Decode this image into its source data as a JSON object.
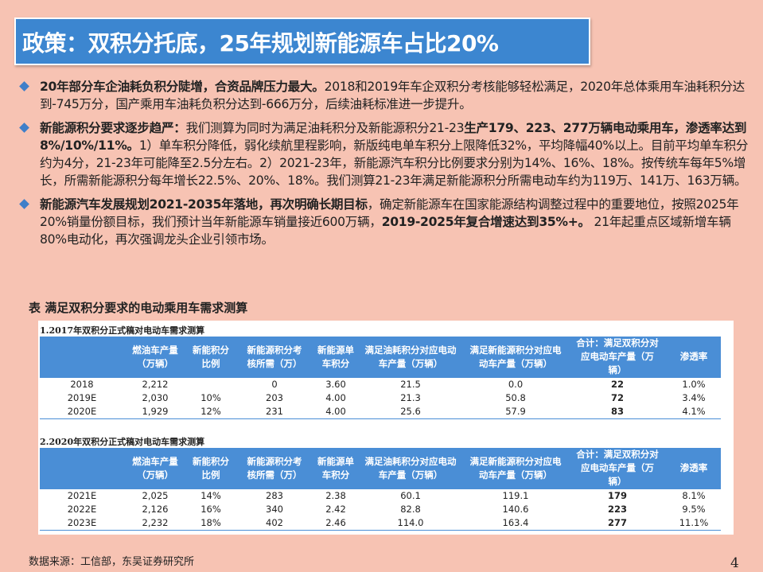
{
  "title": "政策：双积分托底，25年规划新能源车占比20%",
  "bullets": [
    {
      "lead": "20年部分车企油耗负积分陡增，合资品牌压力最大。",
      "text": "2018和2019年车企双积分考核能够轻松满足，2020年总体乘用车油耗积分达到-745万分，国产乘用车油耗负积分达到-666万分，后续油耗标准进一步提升。"
    },
    {
      "lead": "新能源积分要求逐步趋严：",
      "text1": "我们测算为同时为满足油耗积分及新能源积分21-23",
      "bold1": "生产179、223、277万辆电动乘用车，渗透率达到8%/10%/11%。",
      "text2": "1）单车积分降低，弱化续航里程影响，新版纯电单车积分上限降低32%，平均降幅40%以上。目前平均单车积分约为4分，21-23年可能降至2.5分左右。2）2021-23年，新能源汽车积分比例要求分别为14%、16%、18%。按传统车每年5%增长，所需新能源积分每年增长22.5%、20%、18%。我们测算21-23年满足新能源积分所需电动车约为119万、141万、163万辆。"
    },
    {
      "lead": "新能源汽车发展规划2021-2035年落地，再次明确长期目标",
      "text1": "，确定新能源车在国家能源结构调整过程中的重要地位，按照2025年20%销量份额目标，我们预计当年新能源车销量接近600万辆，",
      "bold1": "2019-2025年复合增速达到35%+。",
      "text2": " 21年起重点区域新增车辆80%电动化，再次强调龙头企业引领市场。"
    }
  ],
  "table_caption": "表  满足双积分要求的电动乘用车需求测算",
  "headers": [
    "",
    "燃油车产量（万辆）",
    "新能积分比例",
    "新能源积分考核所需（万）",
    "新能源单车积分",
    "满足油耗积分对应电动车产量（万辆）",
    "满足新能源积分对应电动车产量（万辆）",
    "合计：满足双积分对应电动车产量（万辆）",
    "渗透率"
  ],
  "header_lines": [
    [
      ""
    ],
    [
      "燃油车产量",
      "（万辆）"
    ],
    [
      "新能积分",
      "比例"
    ],
    [
      "新能源积分考",
      "核所需（万）"
    ],
    [
      "新能源单",
      "车积分"
    ],
    [
      "满足油耗积分对应电动",
      "车产量（万辆）"
    ],
    [
      "满足新能源积分对应电",
      "动车产量（万辆）"
    ],
    [
      "合计：满足双积分对",
      "应电动车产量（万",
      "辆）"
    ],
    [
      "渗透率"
    ]
  ],
  "section1": {
    "title": "1.2017年双积分正式稿对电动车需求测算",
    "rows": [
      [
        "2018",
        "2,212",
        "",
        "0",
        "3.60",
        "21.5",
        "0.0",
        "22",
        "1.0%"
      ],
      [
        "2019E",
        "2,030",
        "10%",
        "203",
        "4.00",
        "21.3",
        "50.8",
        "72",
        "3.4%"
      ],
      [
        "2020E",
        "1,929",
        "12%",
        "231",
        "4.00",
        "25.6",
        "57.9",
        "83",
        "4.1%"
      ]
    ]
  },
  "section2": {
    "title": "2.2020年双积分正式稿对电动车需求测算",
    "rows": [
      [
        "2021E",
        "2,025",
        "14%",
        "283",
        "2.38",
        "60.1",
        "119.1",
        "179",
        "8.1%"
      ],
      [
        "2022E",
        "2,126",
        "16%",
        "340",
        "2.42",
        "82.8",
        "140.6",
        "223",
        "9.5%"
      ],
      [
        "2023E",
        "2,232",
        "18%",
        "402",
        "2.46",
        "114.0",
        "163.4",
        "277",
        "11.1%"
      ]
    ]
  },
  "source": "数据来源：工信部，东吴证券研究所",
  "page_number": "4",
  "colors": {
    "background": "#f7c3b3",
    "title_bar": "#3c86d0",
    "table_header": "#4a8ed6",
    "bullet": "#3f7fc9"
  }
}
